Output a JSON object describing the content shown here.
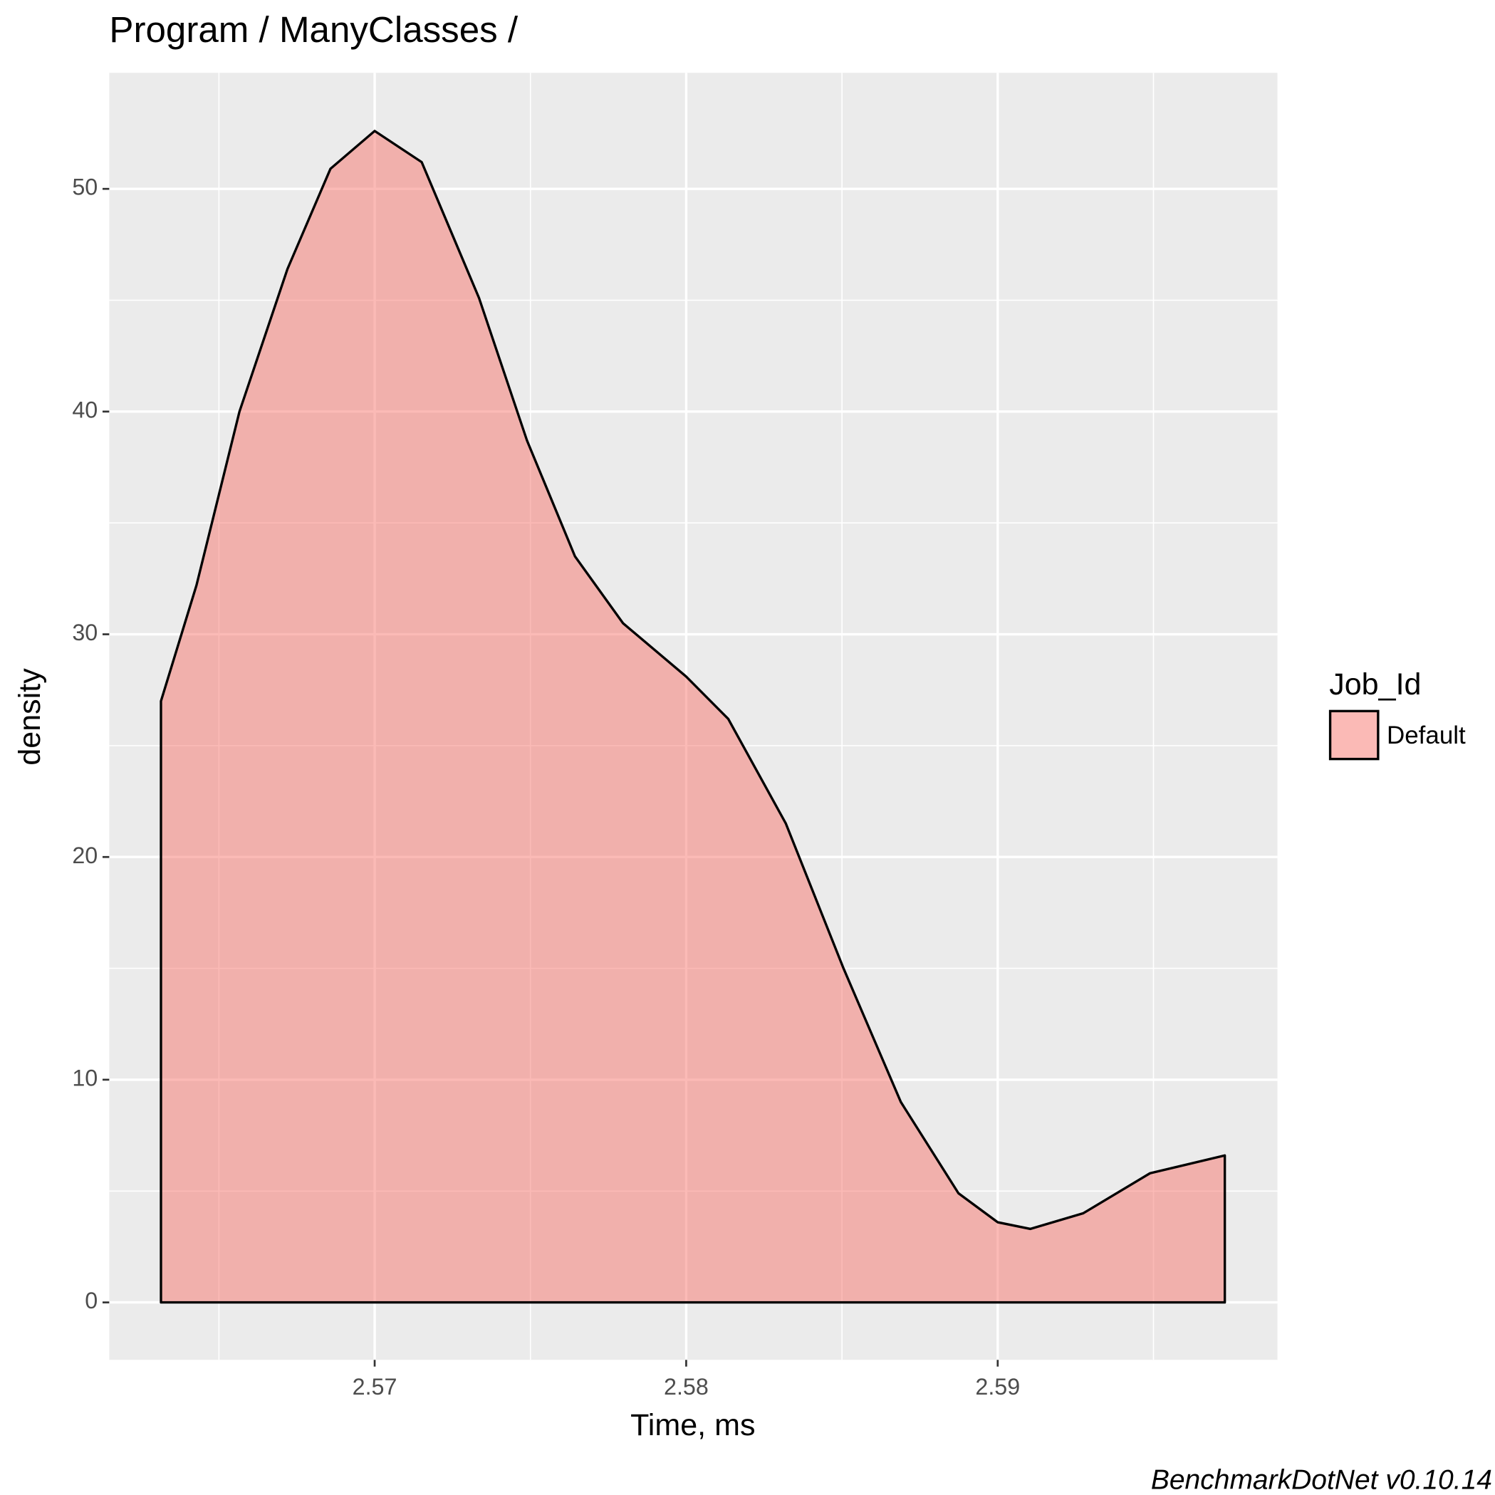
{
  "chart_data": {
    "type": "area",
    "title": "Program / ManyClasses /",
    "x_label": "Time, ms",
    "y_label": "density",
    "caption": "BenchmarkDotNet v0.10.14",
    "legend_title": "Job_Id",
    "legend_position": "right",
    "grid": true,
    "x": [
      2.56314,
      2.56428,
      2.56566,
      2.5672,
      2.56858,
      2.57,
      2.57151,
      2.57335,
      2.57489,
      2.57643,
      2.57797,
      2.58,
      2.58135,
      2.5832,
      2.58505,
      2.58689,
      2.58874,
      2.59,
      2.59105,
      2.59274,
      2.59489,
      2.59729
    ],
    "series": [
      {
        "name": "Default",
        "color": "#F8766D",
        "alpha": 0.5,
        "values": [
          27.0,
          32.2,
          40.0,
          46.4,
          50.9,
          52.6,
          51.2,
          45.1,
          38.7,
          33.5,
          30.5,
          28.1,
          26.2,
          21.5,
          15.0,
          9.0,
          4.9,
          3.6,
          3.3,
          4.0,
          5.8,
          6.6
        ]
      }
    ],
    "xlim": [
      2.56148,
      2.59898
    ],
    "ylim": [
      -2.58,
      55.21
    ],
    "xticks": [
      2.57,
      2.58,
      2.59
    ],
    "yticks": [
      0,
      10,
      20,
      30,
      40,
      50
    ],
    "x_minor_ticks": [
      2.565,
      2.575,
      2.585,
      2.595
    ],
    "y_minor_ticks": [
      5,
      15,
      25,
      35,
      45
    ]
  }
}
